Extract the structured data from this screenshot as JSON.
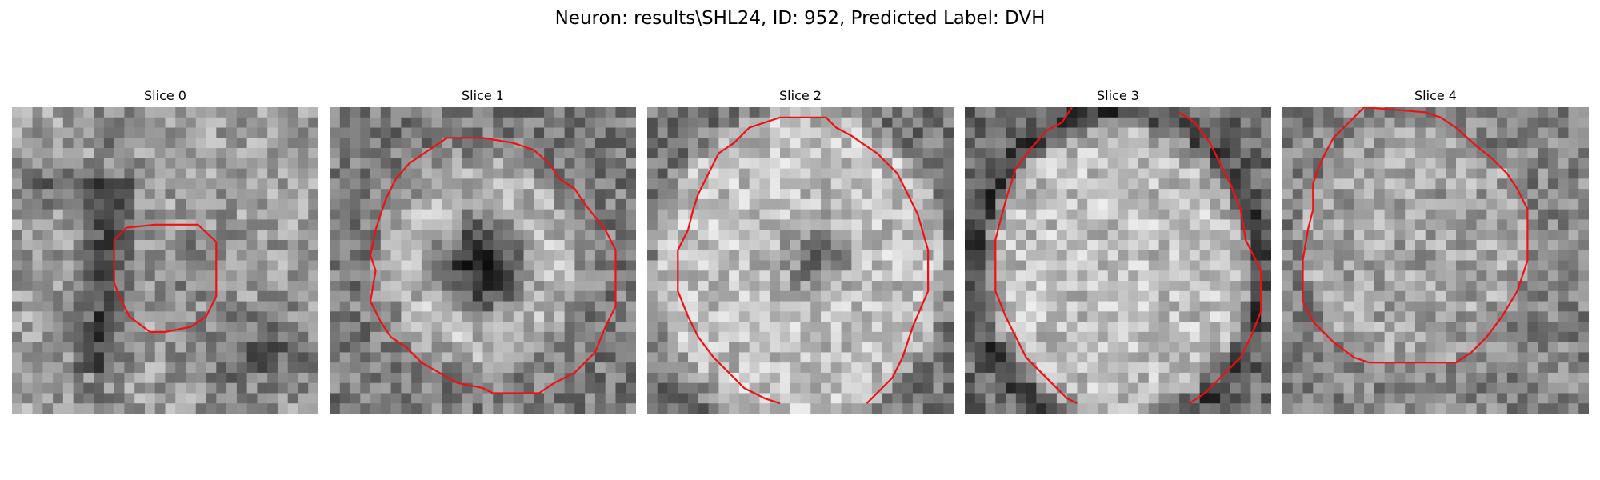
{
  "figure": {
    "title": "Neuron: results\\SHL24, ID: 952, Predicted Label: DVH"
  },
  "colors": {
    "contour": "#ee1111",
    "colormap": "gray"
  },
  "slices": [
    {
      "title": "Slice 0",
      "grid": 30
    },
    {
      "title": "Slice 1",
      "grid": 30
    },
    {
      "title": "Slice 2",
      "grid": 30
    },
    {
      "title": "Slice 3",
      "grid": 30
    },
    {
      "title": "Slice 4",
      "grid": 30
    }
  ]
}
